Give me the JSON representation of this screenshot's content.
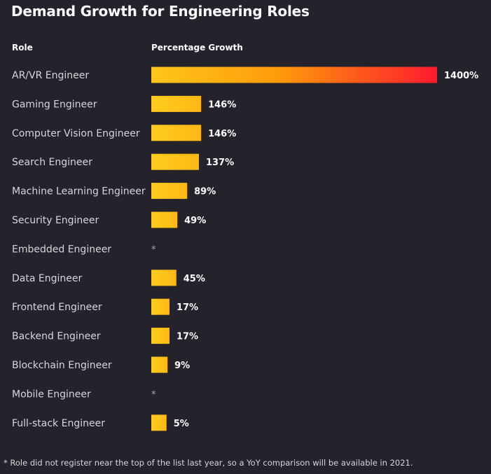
{
  "chart_data": {
    "type": "bar",
    "orientation": "horizontal",
    "title": "Demand Growth for Engineering Roles",
    "column_headers": {
      "category": "Role",
      "value": "Percentage Growth"
    },
    "categories": [
      "AR/VR Engineer",
      "Gaming Engineer",
      "Computer Vision Engineer",
      "Search Engineer",
      "Machine Learning Engineer",
      "Security Engineer",
      "Embedded Engineer",
      "Data Engineer",
      "Frontend Engineer",
      "Backend Engineer",
      "Blockchain Engineer",
      "Mobile Engineer",
      "Full-stack Engineer"
    ],
    "values": [
      1400,
      146,
      146,
      137,
      89,
      49,
      null,
      45,
      17,
      17,
      9,
      null,
      5
    ],
    "value_labels": [
      "1400%",
      "146%",
      "146%",
      "137%",
      "89%",
      "49%",
      "*",
      "45%",
      "17%",
      "17%",
      "9%",
      "*",
      "5%"
    ],
    "colors": {
      "bar_start": "#ffc61a",
      "bar_mid": "#ff9a0a",
      "bar_end": "#ff1a2e",
      "background": "#24222a"
    },
    "footnote": "*  Role did not register near the top of the list last year, so a YoY comparison will be available in 2021."
  }
}
